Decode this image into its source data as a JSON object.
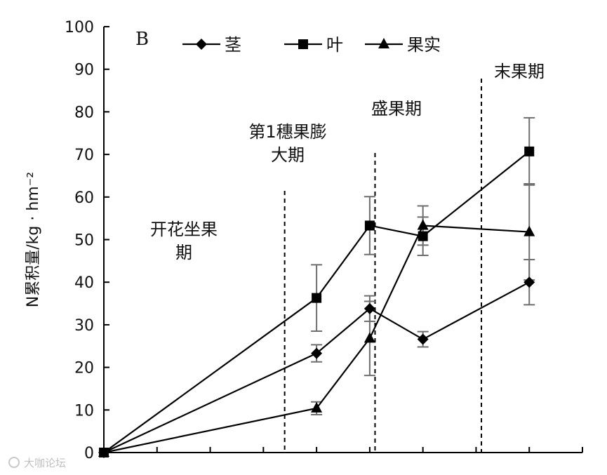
{
  "chart_data": {
    "type": "line",
    "panel_label": "B",
    "ylabel": "N累积量/kg · hm⁻²",
    "ylim": [
      0,
      100
    ],
    "yticks": [
      "0",
      "10",
      "20",
      "30",
      "40",
      "50",
      "60",
      "70",
      "80",
      "90",
      "100"
    ],
    "x": [
      0,
      4,
      5,
      6,
      8
    ],
    "xlim": [
      0,
      9
    ],
    "series": [
      {
        "name": "茎",
        "marker": "diamond",
        "values": [
          0,
          23.3,
          33.8,
          26.6,
          40.0
        ],
        "errors": [
          0,
          2.0,
          3.0,
          1.8,
          5.3
        ]
      },
      {
        "name": "叶",
        "marker": "square",
        "values": [
          0,
          36.3,
          53.3,
          50.8,
          70.7
        ],
        "errors": [
          0,
          7.8,
          6.8,
          4.5,
          7.9
        ]
      },
      {
        "name": "果实",
        "marker": "triangle",
        "values": [
          0,
          10.4,
          26.8,
          53.3,
          51.8
        ],
        "errors": [
          0,
          1.5,
          8.7,
          4.6,
          11.3
        ]
      }
    ],
    "stage_dividers": [
      3.4,
      5.1,
      7.1
    ],
    "stages": [
      {
        "lines": [
          "开花坐果",
          "期"
        ]
      },
      {
        "lines": [
          "第1穗果膨",
          "大期"
        ]
      },
      {
        "lines": [
          "盛果期"
        ]
      },
      {
        "lines": [
          "末果期"
        ]
      }
    ],
    "grid": false,
    "legend_placement": "top"
  },
  "watermark": "大咖论坛"
}
